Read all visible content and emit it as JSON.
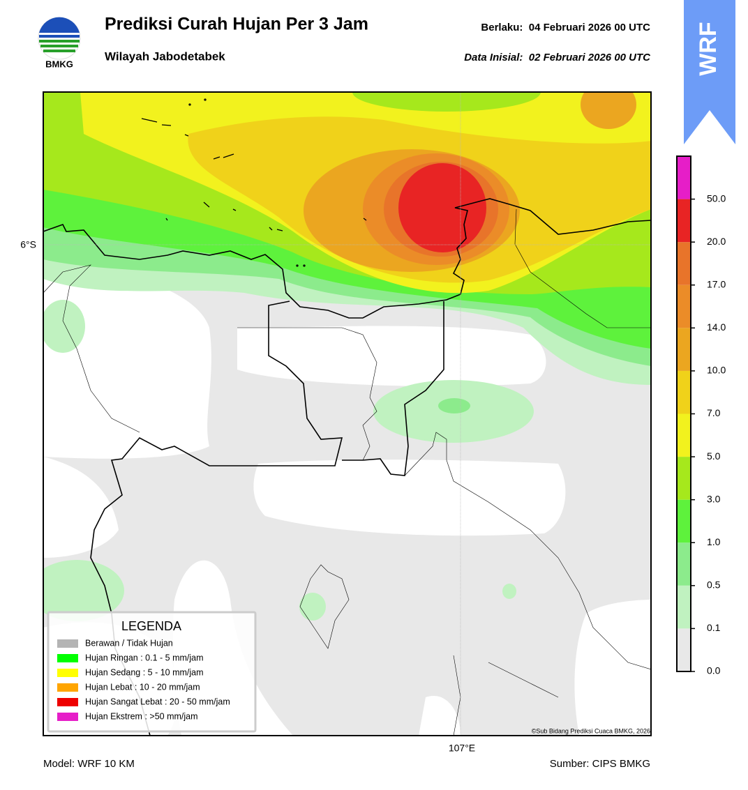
{
  "header": {
    "logo_text": "BMKG",
    "title": "Prediksi Curah Hujan Per 3 Jam",
    "subtitle": "Wilayah Jabodetabek",
    "valid": "Berlaku:  04 Februari 2026 00 UTC",
    "init": "Data Inisial:  02 Februari 2026 00 UTC"
  },
  "badge": "WRF",
  "map": {
    "lat_label": "6°S",
    "lon_label": "107°E",
    "copyright": "©Sub Bidang Prediksi Cuaca BMKG, 2026"
  },
  "legend": {
    "title": "LEGENDA",
    "items": [
      {
        "label": "Berawan / Tidak Hujan",
        "color": "#b4b4b4"
      },
      {
        "label": "Hujan Ringan : 0.1 - 5 mm/jam",
        "color": "#00ff00"
      },
      {
        "label": "Hujan Sedang : 5 - 10 mm/jam",
        "color": "#ffff00"
      },
      {
        "label": "Hujan Lebat : 10 - 20 mm/jam",
        "color": "#ffa500"
      },
      {
        "label": "Hujan Sangat Lebat : 20 - 50 mm/jam",
        "color": "#ee0000"
      },
      {
        "label": "Hujan Ekstrem : >50 mm/jam",
        "color": "#e61ec8"
      }
    ]
  },
  "colorbar": {
    "ticks": [
      {
        "value": 0,
        "label": "0.0"
      },
      0.1,
      0.5,
      {
        "value": 1,
        "label": "1.0"
      },
      {
        "value": 3,
        "label": "3.0"
      },
      {
        "value": 5,
        "label": "5.0"
      },
      {
        "value": 7,
        "label": "7.0"
      },
      {
        "value": 10,
        "label": "10.0"
      },
      {
        "value": 14,
        "label": "14.0"
      },
      {
        "value": 17,
        "label": "17.0"
      },
      {
        "value": 20,
        "label": "20.0"
      },
      {
        "value": 50,
        "label": "50.0"
      }
    ],
    "colors": [
      "#e8e8e8",
      "#c0f2c0",
      "#8ceb8c",
      "#5ef23c",
      "#a6e81c",
      "#f2f21e",
      "#f0d21a",
      "#eba620",
      "#eb8c28",
      "#e8742a",
      "#e82424",
      "#e61ec8"
    ]
  },
  "footer": {
    "model": "Model: WRF 10 KM",
    "source": "Sumber: CIPS BMKG"
  }
}
